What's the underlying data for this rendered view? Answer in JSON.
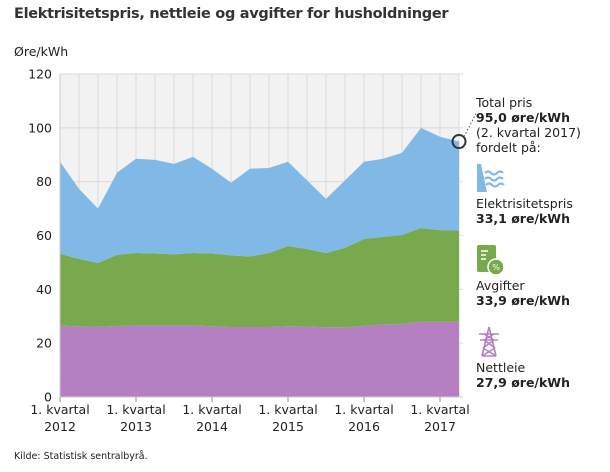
{
  "chart_data": {
    "type": "area",
    "stacked": true,
    "title": "Elektrisitetspris, nettleie og avgifter for husholdninger",
    "ylabel": "Øre/kWh",
    "ylim": [
      0,
      120
    ],
    "yticks": [
      0,
      20,
      40,
      60,
      80,
      100,
      120
    ],
    "grid": true,
    "x": [
      "2012K1",
      "2012K2",
      "2012K3",
      "2012K4",
      "2013K1",
      "2013K2",
      "2013K3",
      "2013K4",
      "2014K1",
      "2014K2",
      "2014K3",
      "2014K4",
      "2015K1",
      "2015K2",
      "2015K3",
      "2015K4",
      "2016K1",
      "2016K2",
      "2016K3",
      "2016K4",
      "2017K1",
      "2017K2"
    ],
    "xtick_labels": [
      {
        "line1": "1. kvartal",
        "line2": "2012"
      },
      {
        "line1": "1. kvartal",
        "line2": "2013"
      },
      {
        "line1": "1. kvartal",
        "line2": "2014"
      },
      {
        "line1": "1. kvartal",
        "line2": "2015"
      },
      {
        "line1": "1. kvartal",
        "line2": "2016"
      },
      {
        "line1": "1. kvartal",
        "line2": "2017"
      }
    ],
    "series": [
      {
        "name": "Nettleie",
        "color": "#b580c2",
        "values": [
          26.5,
          26.3,
          26.1,
          26.4,
          26.6,
          26.6,
          26.6,
          26.6,
          26.3,
          26.0,
          26.0,
          26.0,
          26.3,
          26.2,
          25.9,
          25.9,
          26.4,
          27.0,
          27.1,
          27.9,
          27.9,
          27.9
        ]
      },
      {
        "name": "Avgifter",
        "color": "#78a94c",
        "values": [
          26.7,
          25.0,
          23.7,
          26.4,
          26.9,
          26.7,
          26.4,
          26.9,
          27.0,
          26.6,
          26.2,
          27.5,
          29.8,
          28.8,
          27.6,
          29.5,
          32.3,
          32.5,
          33.1,
          34.9,
          34.1,
          33.9
        ]
      },
      {
        "name": "Elektrisitetspris",
        "color": "#80b8e6",
        "values": [
          34.2,
          26.0,
          20.2,
          30.5,
          35.0,
          34.8,
          33.6,
          35.7,
          31.5,
          27.0,
          32.6,
          31.6,
          31.3,
          25.5,
          20.1,
          25.1,
          28.7,
          29.0,
          30.5,
          37.2,
          34.7,
          33.1
        ]
      }
    ],
    "source": "Kilde: Statistisk sentralbyrå."
  },
  "legend": {
    "total_label": "Total pris",
    "total_value": "95,0 øre/kWh",
    "period": "(2. kvartal 2017)",
    "split_label": "fordelt på:",
    "items": [
      {
        "label": "Elektrisitetspris",
        "value": "33,1 øre/kWh",
        "icon": "hydropower-icon"
      },
      {
        "label": "Avgifter",
        "value": "33,9 øre/kWh",
        "icon": "tax-document-icon"
      },
      {
        "label": "Nettleie",
        "value": "27,9 øre/kWh",
        "icon": "power-pylon-icon"
      }
    ]
  }
}
